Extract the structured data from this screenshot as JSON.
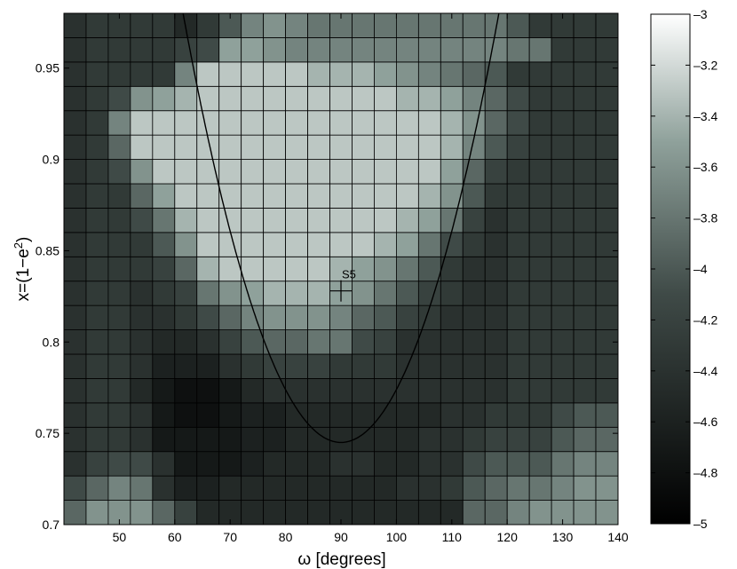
{
  "chart_data": {
    "type": "heatmap",
    "xlabel": "ω [degrees]",
    "ylabel": "x=(1−e²)",
    "xlim": [
      40,
      140
    ],
    "ylim": [
      0.7,
      0.98
    ],
    "xticks": [
      50,
      60,
      70,
      80,
      90,
      100,
      110,
      120,
      130,
      140
    ],
    "yticks": [
      0.7,
      0.75,
      0.8,
      0.85,
      0.9,
      0.95
    ],
    "colorbar": {
      "min": -5,
      "max": -3,
      "ticks": [
        -3,
        -3.2,
        -3.4,
        -3.6,
        -3.8,
        -4,
        -4.2,
        -4.4,
        -4.6,
        -4.8,
        -5
      ]
    },
    "grid": {
      "x_start": 40,
      "x_step": 4,
      "cols": 25,
      "y_start": 0.7,
      "y_step": 0.0133333,
      "rows": 21
    },
    "values": [
      [
        -3.9,
        -3.6,
        -3.6,
        -3.6,
        -3.9,
        -4.2,
        -4.5,
        -4.5,
        -4.5,
        -4.5,
        -4.5,
        -4.5,
        -4.5,
        -4.5,
        -4.5,
        -4.5,
        -4.5,
        -4.5,
        -3.9,
        -3.9,
        -3.7,
        -3.6,
        -3.6,
        -3.6,
        -3.6
      ],
      [
        -4.1,
        -3.9,
        -3.7,
        -3.8,
        -4.4,
        -4.6,
        -4.6,
        -4.5,
        -4.5,
        -4.5,
        -4.5,
        -4.5,
        -4.5,
        -4.5,
        -4.5,
        -4.4,
        -4.4,
        -4.3,
        -4.0,
        -3.9,
        -3.8,
        -3.8,
        -3.7,
        -3.6,
        -3.6
      ],
      [
        -4.4,
        -4.2,
        -4.1,
        -4.1,
        -4.4,
        -4.7,
        -4.7,
        -4.7,
        -4.6,
        -4.5,
        -4.5,
        -4.5,
        -4.4,
        -4.4,
        -4.5,
        -4.5,
        -4.4,
        -4.4,
        -4.1,
        -4.0,
        -4.0,
        -4.0,
        -3.8,
        -3.7,
        -3.7
      ],
      [
        -4.4,
        -4.3,
        -4.3,
        -4.4,
        -4.7,
        -4.7,
        -4.7,
        -4.7,
        -4.6,
        -4.6,
        -4.5,
        -4.5,
        -4.5,
        -4.5,
        -4.5,
        -4.5,
        -4.4,
        -4.4,
        -4.3,
        -4.2,
        -4.2,
        -4.2,
        -4.0,
        -3.9,
        -3.9
      ],
      [
        -4.4,
        -4.3,
        -4.3,
        -4.4,
        -4.7,
        -4.8,
        -4.8,
        -4.7,
        -4.6,
        -4.6,
        -4.5,
        -4.5,
        -4.5,
        -4.5,
        -4.5,
        -4.5,
        -4.5,
        -4.4,
        -4.4,
        -4.3,
        -4.3,
        -4.3,
        -4.1,
        -4.0,
        -4.0
      ],
      [
        -4.4,
        -4.3,
        -4.3,
        -4.5,
        -4.7,
        -4.8,
        -4.8,
        -4.7,
        -4.5,
        -4.4,
        -4.4,
        -4.4,
        -4.4,
        -4.4,
        -4.4,
        -4.4,
        -4.4,
        -4.4,
        -4.4,
        -4.4,
        -4.3,
        -4.3,
        -4.3,
        -4.3,
        -4.3
      ],
      [
        -4.4,
        -4.3,
        -4.3,
        -4.4,
        -4.6,
        -4.6,
        -4.6,
        -4.4,
        -4.3,
        -4.2,
        -4.2,
        -4.2,
        -4.3,
        -4.3,
        -4.3,
        -4.4,
        -4.4,
        -4.4,
        -4.4,
        -4.4,
        -4.3,
        -4.3,
        -4.3,
        -4.3,
        -4.3
      ],
      [
        -4.4,
        -4.3,
        -4.3,
        -4.4,
        -4.5,
        -4.5,
        -4.4,
        -4.2,
        -4.0,
        -3.9,
        -3.9,
        -3.8,
        -3.8,
        -4.1,
        -4.2,
        -4.4,
        -4.4,
        -4.4,
        -4.4,
        -4.4,
        -4.3,
        -4.3,
        -4.3,
        -4.3,
        -4.3
      ],
      [
        -4.4,
        -4.3,
        -4.3,
        -4.4,
        -4.4,
        -4.3,
        -4.1,
        -3.9,
        -3.7,
        -3.6,
        -3.6,
        -3.6,
        -3.7,
        -3.9,
        -4.0,
        -4.2,
        -4.3,
        -4.4,
        -4.4,
        -4.4,
        -4.3,
        -4.3,
        -4.3,
        -4.3,
        -4.3
      ],
      [
        -4.4,
        -4.3,
        -4.3,
        -4.4,
        -4.3,
        -4.2,
        -3.8,
        -3.6,
        -3.5,
        -3.4,
        -3.4,
        -3.4,
        -3.5,
        -3.6,
        -3.8,
        -4.0,
        -4.2,
        -4.3,
        -4.4,
        -4.4,
        -4.3,
        -4.3,
        -4.3,
        -4.3,
        -4.3
      ],
      [
        -4.4,
        -4.3,
        -4.3,
        -4.3,
        -4.2,
        -3.9,
        -3.4,
        -3.3,
        -3.3,
        -3.3,
        -3.3,
        -3.3,
        -3.4,
        -3.5,
        -3.6,
        -3.8,
        -4.0,
        -4.3,
        -4.4,
        -4.4,
        -4.3,
        -4.3,
        -4.3,
        -4.3,
        -4.3
      ],
      [
        -4.4,
        -4.3,
        -4.3,
        -4.3,
        -4.0,
        -3.6,
        -3.3,
        -3.3,
        -3.3,
        -3.3,
        -3.3,
        -3.3,
        -3.3,
        -3.3,
        -3.4,
        -3.5,
        -3.8,
        -4.1,
        -4.3,
        -4.4,
        -4.3,
        -4.3,
        -4.3,
        -4.3,
        -4.3
      ],
      [
        -4.4,
        -4.3,
        -4.3,
        -4.1,
        -3.8,
        -3.4,
        -3.3,
        -3.3,
        -3.3,
        -3.3,
        -3.3,
        -3.3,
        -3.3,
        -3.3,
        -3.3,
        -3.4,
        -3.5,
        -3.8,
        -4.2,
        -4.4,
        -4.3,
        -4.3,
        -4.3,
        -4.3,
        -4.3
      ],
      [
        -4.4,
        -4.3,
        -4.3,
        -3.9,
        -3.5,
        -3.3,
        -3.3,
        -3.3,
        -3.3,
        -3.3,
        -3.3,
        -3.3,
        -3.3,
        -3.3,
        -3.3,
        -3.3,
        -3.4,
        -3.6,
        -4.0,
        -4.3,
        -4.3,
        -4.3,
        -4.3,
        -4.3,
        -4.3
      ],
      [
        -4.4,
        -4.3,
        -4.1,
        -3.6,
        -3.3,
        -3.3,
        -3.3,
        -3.3,
        -3.3,
        -3.3,
        -3.3,
        -3.3,
        -3.3,
        -3.3,
        -3.3,
        -3.3,
        -3.3,
        -3.5,
        -3.9,
        -4.2,
        -4.3,
        -4.3,
        -4.3,
        -4.3,
        -4.3
      ],
      [
        -4.4,
        -4.3,
        -3.9,
        -3.3,
        -3.3,
        -3.3,
        -3.3,
        -3.3,
        -3.3,
        -3.3,
        -3.3,
        -3.3,
        -3.3,
        -3.3,
        -3.3,
        -3.3,
        -3.3,
        -3.4,
        -3.7,
        -4.0,
        -4.2,
        -4.3,
        -4.3,
        -4.3,
        -4.3
      ],
      [
        -4.4,
        -4.3,
        -3.7,
        -3.3,
        -3.3,
        -3.3,
        -3.3,
        -3.3,
        -3.3,
        -3.3,
        -3.3,
        -3.3,
        -3.3,
        -3.3,
        -3.3,
        -3.3,
        -3.3,
        -3.4,
        -3.6,
        -3.9,
        -4.1,
        -4.3,
        -4.3,
        -4.3,
        -4.3
      ],
      [
        -4.4,
        -4.3,
        -4.1,
        -3.6,
        -3.5,
        -3.4,
        -3.3,
        -3.3,
        -3.3,
        -3.3,
        -3.3,
        -3.3,
        -3.3,
        -3.3,
        -3.3,
        -3.4,
        -3.4,
        -3.5,
        -3.7,
        -3.9,
        -4.1,
        -4.3,
        -4.3,
        -4.3,
        -4.3
      ],
      [
        -4.4,
        -4.3,
        -4.3,
        -4.3,
        -4.3,
        -3.7,
        -3.3,
        -3.3,
        -3.3,
        -3.3,
        -3.3,
        -3.4,
        -3.4,
        -3.4,
        -3.5,
        -3.6,
        -3.7,
        -3.8,
        -3.9,
        -4.0,
        -4.3,
        -4.3,
        -4.3,
        -4.3,
        -4.3
      ],
      [
        -4.4,
        -4.3,
        -4.3,
        -4.3,
        -4.3,
        -4.2,
        -4.1,
        -3.5,
        -3.5,
        -3.6,
        -3.7,
        -3.7,
        -3.7,
        -3.7,
        -3.7,
        -3.7,
        -3.7,
        -3.7,
        -3.7,
        -3.7,
        -3.8,
        -3.8,
        -4.3,
        -4.3,
        -4.3
      ],
      [
        -4.4,
        -4.3,
        -4.3,
        -4.3,
        -4.3,
        -4.5,
        -4.3,
        -4.0,
        -3.7,
        -3.6,
        -3.7,
        -3.8,
        -3.8,
        -3.8,
        -3.8,
        -3.8,
        -3.8,
        -3.8,
        -3.8,
        -3.8,
        -4.0,
        -4.3,
        -4.3,
        -4.3,
        -4.3
      ]
    ],
    "curve": {
      "vertex_x": 90,
      "vertex_y": 0.745
    },
    "annotation": {
      "label": "S5",
      "x": 90,
      "y": 0.828
    }
  }
}
